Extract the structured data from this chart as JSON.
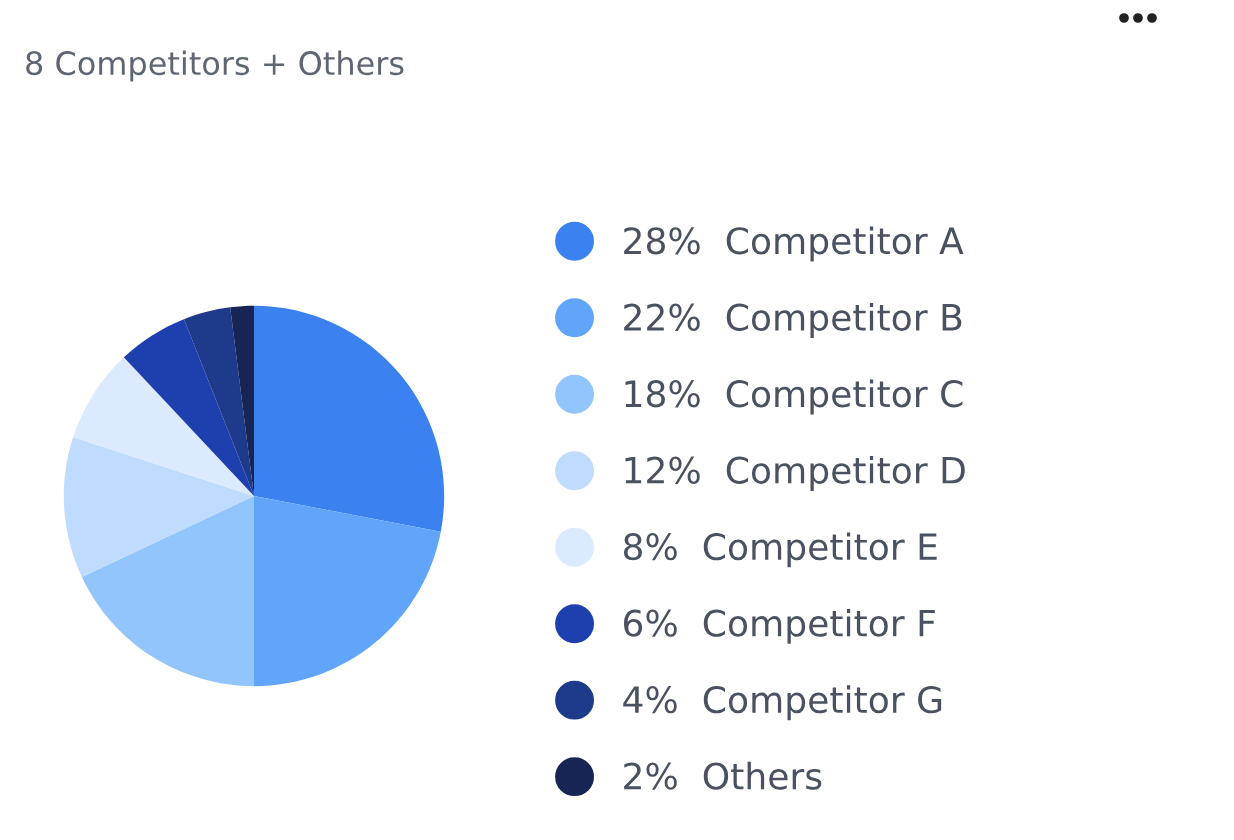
{
  "chart_data": {
    "type": "pie",
    "title": "8 Competitors + Others",
    "categories": [
      "Competitor A",
      "Competitor B",
      "Competitor C",
      "Competitor D",
      "Competitor E",
      "Competitor F",
      "Competitor G",
      "Others"
    ],
    "values": [
      28,
      22,
      18,
      12,
      8,
      6,
      4,
      2
    ],
    "value_labels": [
      "28%",
      "22%",
      "18%",
      "12%",
      "8%",
      "6%",
      "4%",
      "2%"
    ],
    "colors": [
      "#3b82f0",
      "#60a5fa",
      "#93c5fd",
      "#bfdbfe",
      "#dbeafe",
      "#1e40af",
      "#1e3a8a",
      "#172554"
    ],
    "legend": "right"
  }
}
